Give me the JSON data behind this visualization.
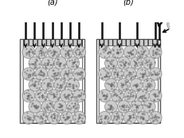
{
  "fig_width": 2.32,
  "fig_height": 1.73,
  "dpi": 100,
  "bg_color": "#ffffff",
  "label_a": "(a)",
  "label_b": "(b)",
  "needle_color": "#111111",
  "frit_fc": "#cccccc",
  "frit_hatch": "|||",
  "bead_fc": "#cccccc",
  "bead_ec": "#888888",
  "bead_dot_color": "#666666",
  "wall_fc": "#dddddd",
  "wall_ec": "#333333",
  "arrow_color": "#111111",
  "branch_color": "#111111"
}
